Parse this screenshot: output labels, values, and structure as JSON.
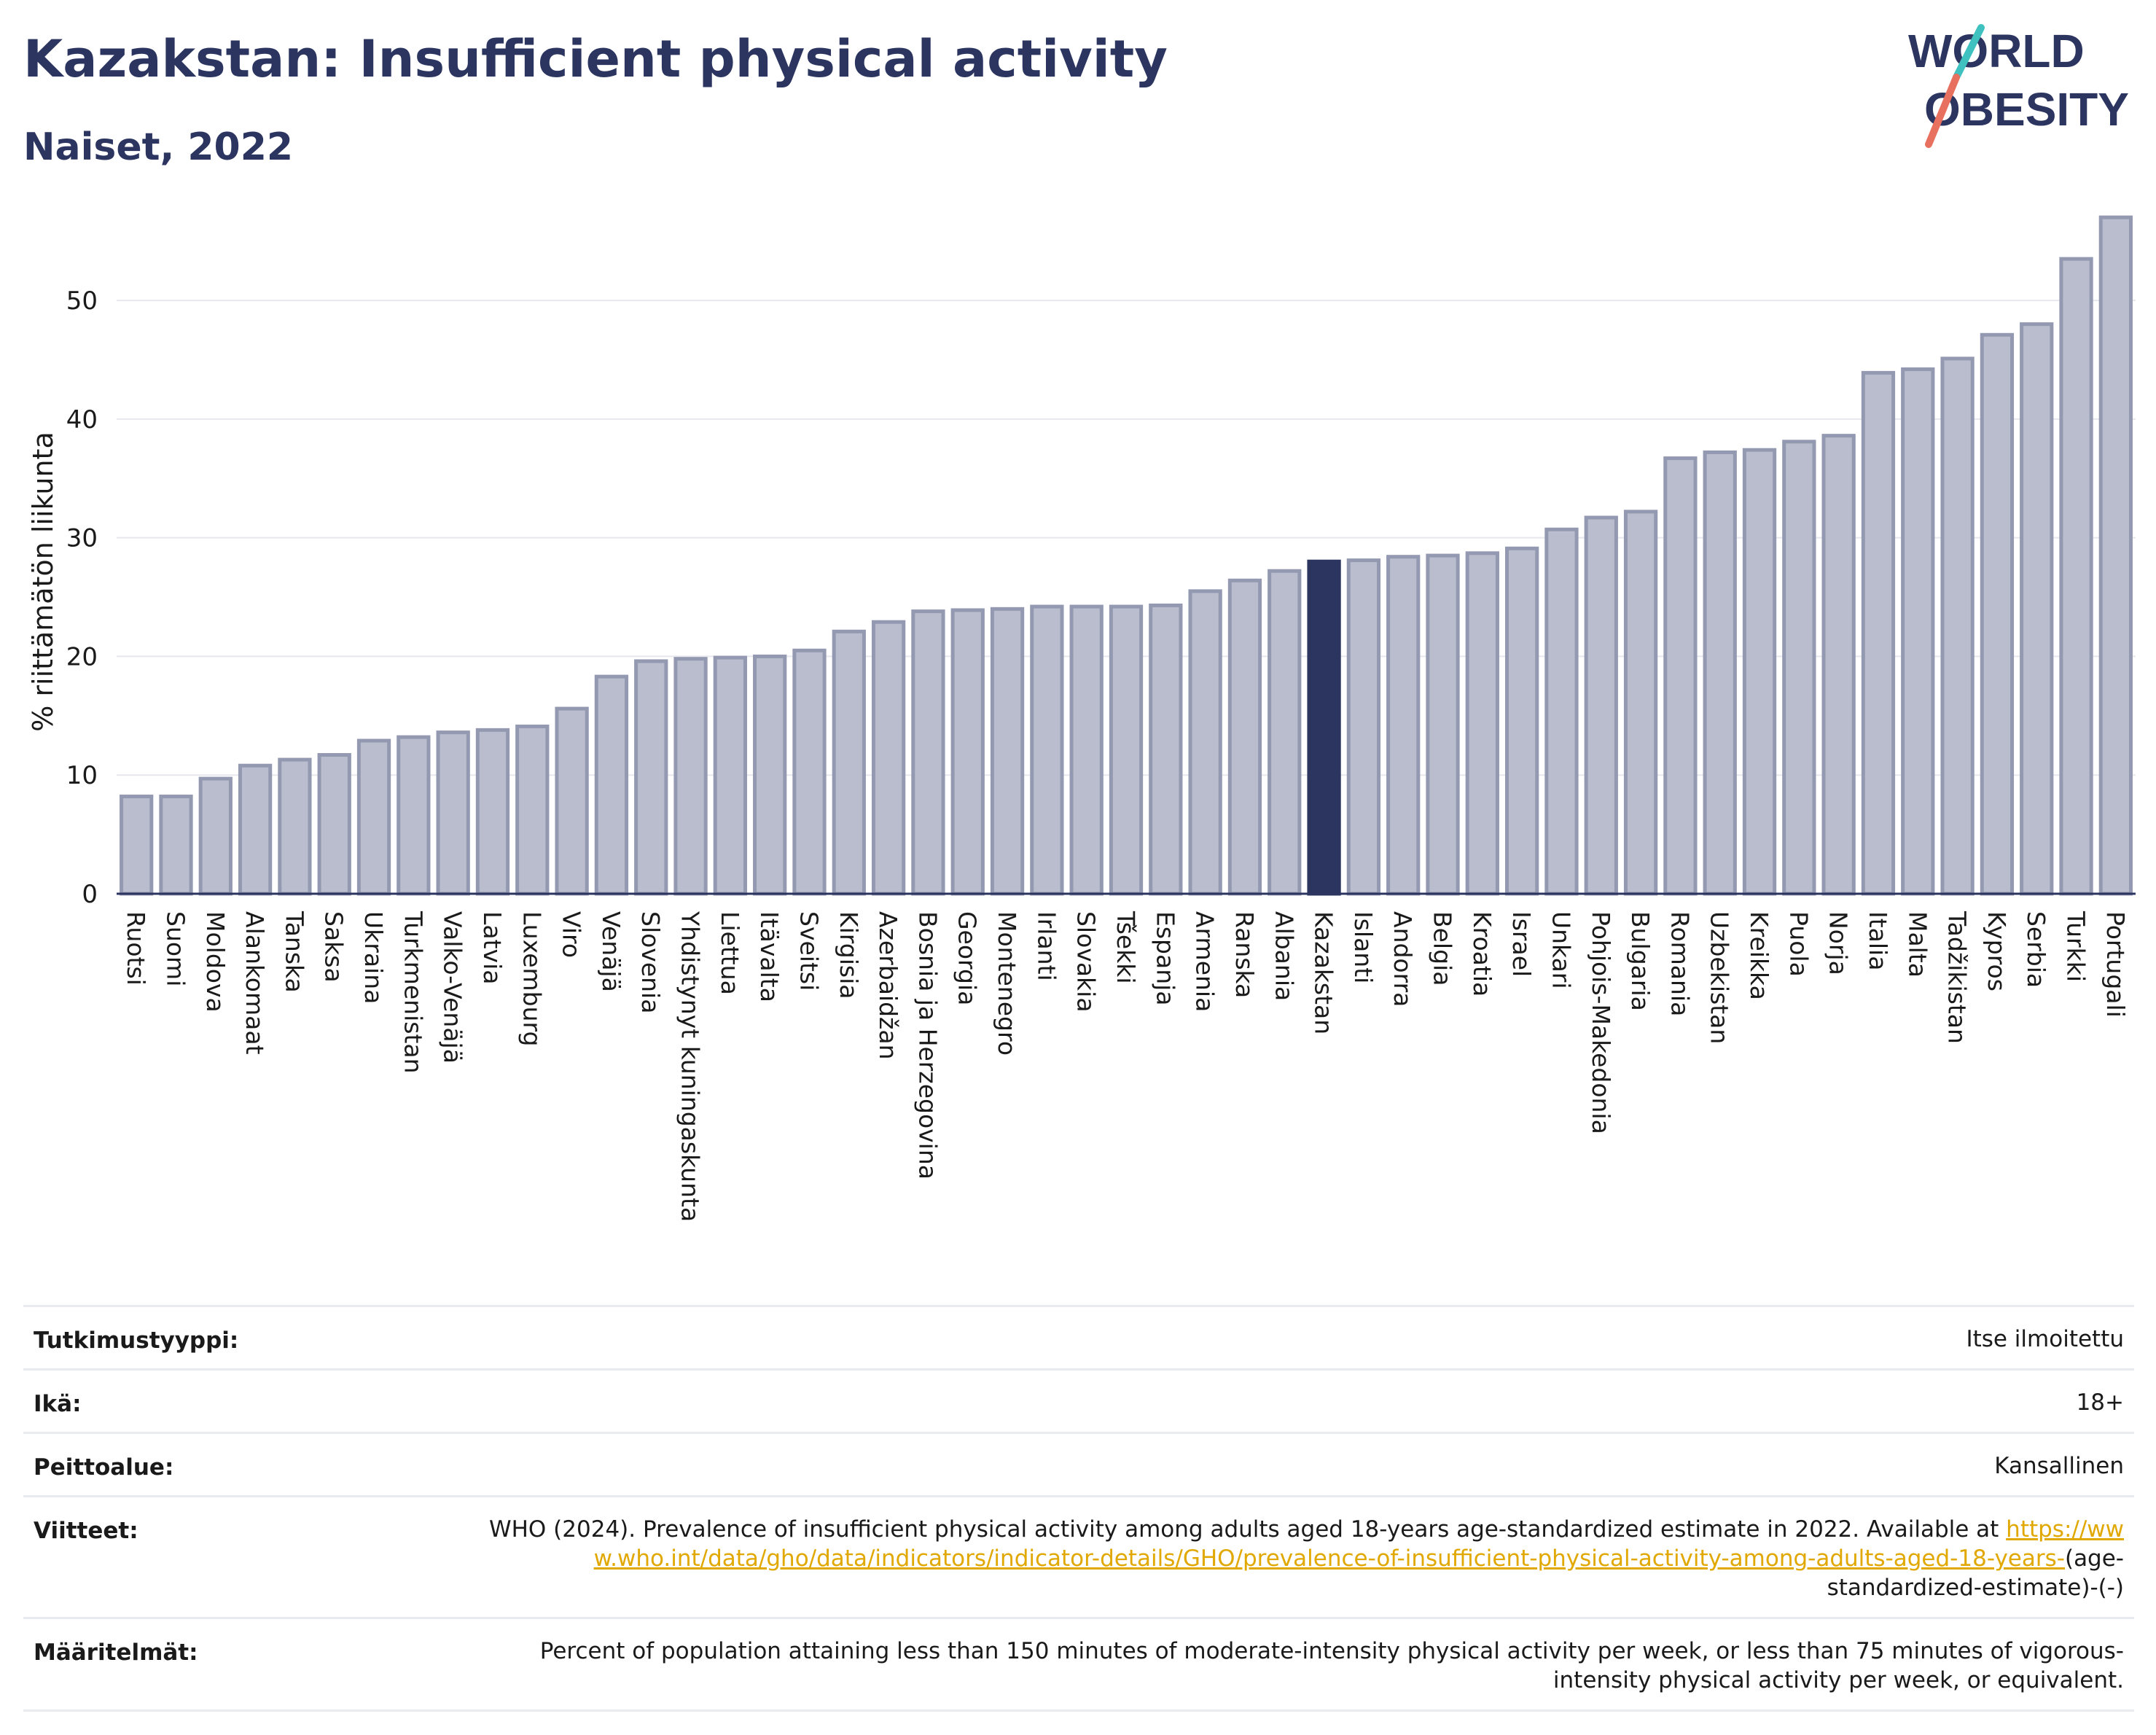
{
  "header": {
    "title": "Kazakstan: Insufficient physical activity",
    "subtitle": "Naiset, 2022",
    "logo_line1": "WORLD",
    "logo_line2": "OBESITY"
  },
  "colors": {
    "bar": "#b9bdcd",
    "bar_edge": "#9499b2",
    "highlight": "#2b3560",
    "title": "#2b3560",
    "logo_slash_top": "#3fc1c0",
    "logo_slash_bottom": "#e8705f",
    "link": "#e0a800"
  },
  "chart_data": {
    "type": "bar",
    "ylabel": "% riittämätön liikunta",
    "ylim": [
      0,
      57.5
    ],
    "yticks": [
      0,
      10,
      20,
      30,
      40,
      50
    ],
    "grid": true,
    "highlight": "Kazakstan",
    "categories": [
      "Ruotsi",
      "Suomi",
      "Moldova",
      "Alankomaat",
      "Tanska",
      "Saksa",
      "Ukraina",
      "Turkmenistan",
      "Valko-Venäjä",
      "Latvia",
      "Luxemburg",
      "Viro",
      "Venäjä",
      "Slovenia",
      "Yhdistynyt kuningaskunta",
      "Liettua",
      "Itävalta",
      "Sveitsi",
      "Kirgisia",
      "Azerbaidžan",
      "Bosnia ja Herzegovina",
      "Georgia",
      "Montenegro",
      "Irlanti",
      "Slovakia",
      "Tšekki",
      "Espanja",
      "Armenia",
      "Ranska",
      "Albania",
      "Kazakstan",
      "Islanti",
      "Andorra",
      "Belgia",
      "Kroatia",
      "Israel",
      "Unkari",
      "Pohjois-Makedonia",
      "Bulgaria",
      "Romania",
      "Uzbekistan",
      "Kreikka",
      "Puola",
      "Norja",
      "Italia",
      "Malta",
      "Tadžikistan",
      "Kypros",
      "Serbia",
      "Turkki",
      "Portugali"
    ],
    "values": [
      8.2,
      8.2,
      9.7,
      10.8,
      11.3,
      11.7,
      12.9,
      13.2,
      13.6,
      13.8,
      14.1,
      15.6,
      18.3,
      19.6,
      19.8,
      19.9,
      20.0,
      20.5,
      22.1,
      22.9,
      23.8,
      23.9,
      24.0,
      24.2,
      24.2,
      24.2,
      24.3,
      25.5,
      26.4,
      27.2,
      28.0,
      28.1,
      28.4,
      28.5,
      28.7,
      29.1,
      30.7,
      31.7,
      32.2,
      36.7,
      37.2,
      37.4,
      38.1,
      38.6,
      43.9,
      44.2,
      45.1,
      47.1,
      48.0,
      53.5,
      57.0
    ]
  },
  "meta": {
    "rows": [
      {
        "label": "Tutkimustyyppi:",
        "value": "Itse ilmoitettu"
      },
      {
        "label": "Ikä:",
        "value": "18+"
      },
      {
        "label": "Peittoalue:",
        "value": "Kansallinen"
      },
      {
        "label": "Viitteet:",
        "value": "WHO (2024). Prevalence of insufficient physical activity among adults aged 18-years age-standardized estimate in 2022. Available at",
        "link": "https://www.who.int/data/gho/data/indicators/indicator-details/GHO/prevalence-of-insufficient-physical-activity-among-adults-aged-18-years-",
        "suffix": "(age-standardized-estimate)-(-)"
      },
      {
        "label": "Määritelmät:",
        "value": "Percent of population attaining less than 150 minutes of moderate-intensity physical activity per week, or less than 75 minutes of vigorous-intensity physical activity per week, or equivalent."
      }
    ]
  }
}
